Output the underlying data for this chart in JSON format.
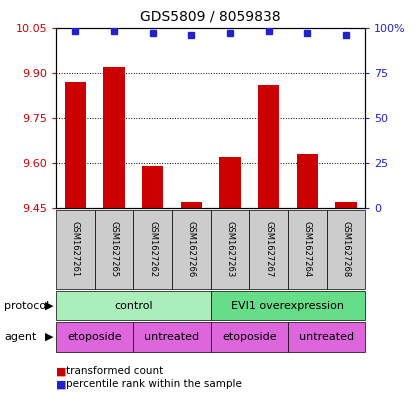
{
  "title": "GDS5809 / 8059838",
  "samples": [
    "GSM1627261",
    "GSM1627265",
    "GSM1627262",
    "GSM1627266",
    "GSM1627263",
    "GSM1627267",
    "GSM1627264",
    "GSM1627268"
  ],
  "red_values": [
    9.87,
    9.92,
    9.59,
    9.47,
    9.62,
    9.86,
    9.63,
    9.47
  ],
  "blue_values": [
    98,
    98,
    97,
    96,
    97,
    98,
    97,
    96
  ],
  "ylim_left": [
    9.45,
    10.05
  ],
  "yticks_left": [
    9.45,
    9.6,
    9.75,
    9.9,
    10.05
  ],
  "ylim_right": [
    0,
    100
  ],
  "yticks_right": [
    0,
    25,
    50,
    75,
    100
  ],
  "yticklabels_right": [
    "0",
    "25",
    "50",
    "75",
    "100%"
  ],
  "bar_color": "#cc0000",
  "dot_color": "#2222cc",
  "bar_bottom": 9.45,
  "protocol_color_left": "#aaeebb",
  "protocol_color_right": "#66dd88",
  "agent_color": "#dd66dd",
  "legend_red_label": "transformed count",
  "legend_blue_label": "percentile rank within the sample",
  "left_tick_color": "#cc0000",
  "right_tick_color": "#2222cc",
  "bar_width": 0.55,
  "dot_size": 5
}
